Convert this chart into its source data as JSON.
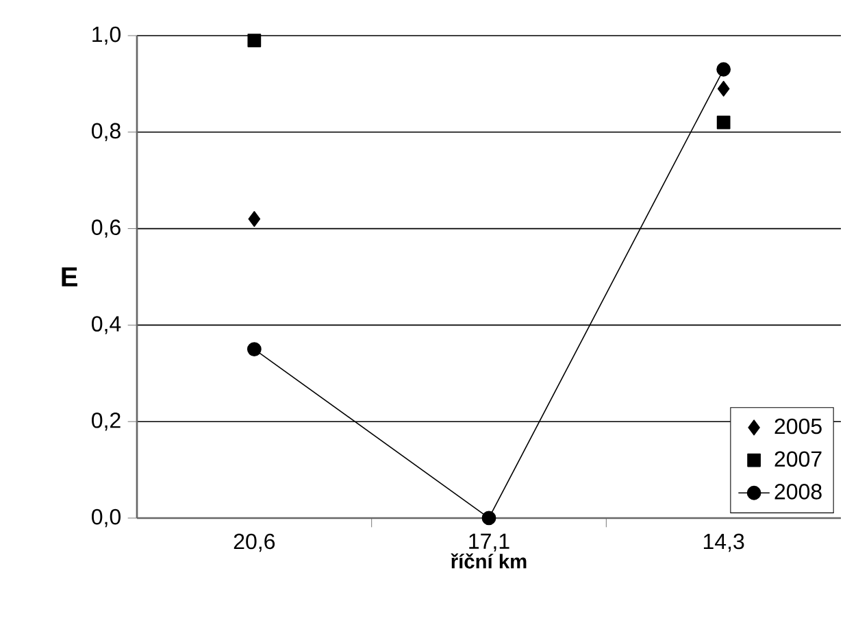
{
  "chart_data": {
    "type": "line",
    "xlabel": "říční km",
    "ylabel": "E",
    "categories": [
      "20,6",
      "17,1",
      "14,3"
    ],
    "series": [
      {
        "name": "2005",
        "type": "scatter",
        "marker": "diamond",
        "color": "#000000",
        "values": [
          0.62,
          null,
          0.89
        ]
      },
      {
        "name": "2007",
        "type": "scatter",
        "marker": "square",
        "color": "#000000",
        "values": [
          0.99,
          null,
          0.82
        ]
      },
      {
        "name": "2008",
        "marker": "circle",
        "color": "#000000",
        "values": [
          0.35,
          0,
          0.93
        ]
      }
    ],
    "ylim": [
      0,
      1
    ],
    "yticks": [
      {
        "value": 0,
        "label": "0,0"
      },
      {
        "value": 0.2,
        "label": "0,2"
      },
      {
        "value": 0.4,
        "label": "0,4"
      },
      {
        "value": 0.6,
        "label": "0,6"
      },
      {
        "value": 0.8,
        "label": "0,8"
      },
      {
        "value": 1,
        "label": "1,0"
      }
    ],
    "grid": "y",
    "legend": "bottom right"
  }
}
